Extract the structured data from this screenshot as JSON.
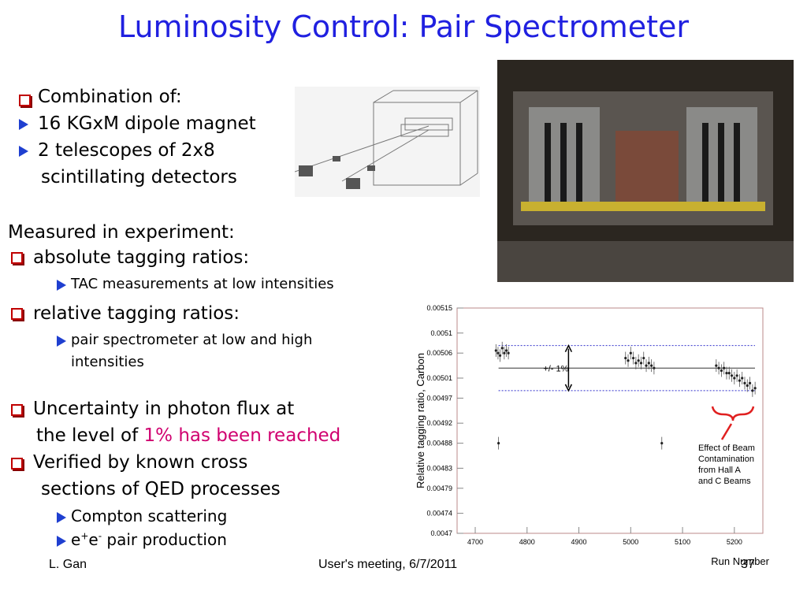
{
  "title": "Luminosity Control: Pair Spectrometer",
  "intro": {
    "heading": "Combination of:",
    "items": [
      [
        "16 KGxM dipole magnet"
      ],
      [
        "2 telescopes of 2x8",
        "scintillating detectors"
      ]
    ]
  },
  "measured": {
    "heading": "Measured in experiment:",
    "absolute": {
      "label": "absolute tagging ratios:",
      "sub": [
        "TAC measurements at low intensities"
      ]
    },
    "relative": {
      "label": "relative tagging ratios:",
      "sub": [
        "pair spectrometer at low and high",
        "intensities"
      ]
    }
  },
  "uncertainty": {
    "line1": "Uncertainty in photon flux at",
    "line2": "the level of ",
    "highlight": "1% has been reached"
  },
  "verified": {
    "lines": [
      "Verified  by known cross",
      "sections of QED processes"
    ],
    "items": {
      "compton": "Compton scattering",
      "pair": [
        "e",
        "+",
        "e",
        "-",
        " pair production"
      ]
    }
  },
  "footer": {
    "author": "L. Gan",
    "event": "User's meeting, 6/7/2011",
    "page": "37"
  },
  "chart_data": {
    "type": "scatter",
    "ylabel": "Relative tagging ratio, Carbon",
    "xlabel": "Run Number",
    "xlim": [
      4665,
      5255
    ],
    "ylim": [
      0.0047,
      0.00515
    ],
    "xticks": [
      4700,
      4800,
      4900,
      5000,
      5100,
      5200
    ],
    "yticks": [
      0.0047,
      0.00474,
      0.00479,
      0.00483,
      0.00488,
      0.00492,
      0.00497,
      0.00501,
      0.00506,
      0.0051,
      0.00515
    ],
    "hlines": [
      0.005075,
      0.00503,
      0.004985
    ],
    "annotation": "+/- 1%",
    "note": [
      "Effect of Beam",
      "Contamination",
      "from Hall A",
      "and C Beams"
    ],
    "series": [
      {
        "color": "#222222",
        "x": [
          4740,
          4744,
          4745,
          4748,
          4752,
          4756,
          4760,
          4764,
          4990,
          4995,
          5000,
          5005,
          5010,
          5015,
          5020,
          5025,
          5030,
          5035,
          5040,
          5045,
          5060,
          5165,
          5170,
          5175,
          5180,
          5185,
          5190,
          5195,
          5200,
          5205,
          5210,
          5215,
          5220,
          5225,
          5230,
          5235,
          5240
        ],
        "values": [
          0.005065,
          0.00506,
          0.00488,
          0.005055,
          0.00507,
          0.00506,
          0.005065,
          0.00506,
          0.00505,
          0.005045,
          0.00506,
          0.00505,
          0.00504,
          0.005045,
          0.00504,
          0.00505,
          0.005035,
          0.00504,
          0.005035,
          0.00503,
          0.00488,
          0.005035,
          0.00503,
          0.005025,
          0.00503,
          0.00502,
          0.00502,
          0.005015,
          0.00501,
          0.005015,
          0.005005,
          0.00501,
          0.005,
          0.004995,
          0.005,
          0.004985,
          0.00499
        ]
      }
    ]
  }
}
